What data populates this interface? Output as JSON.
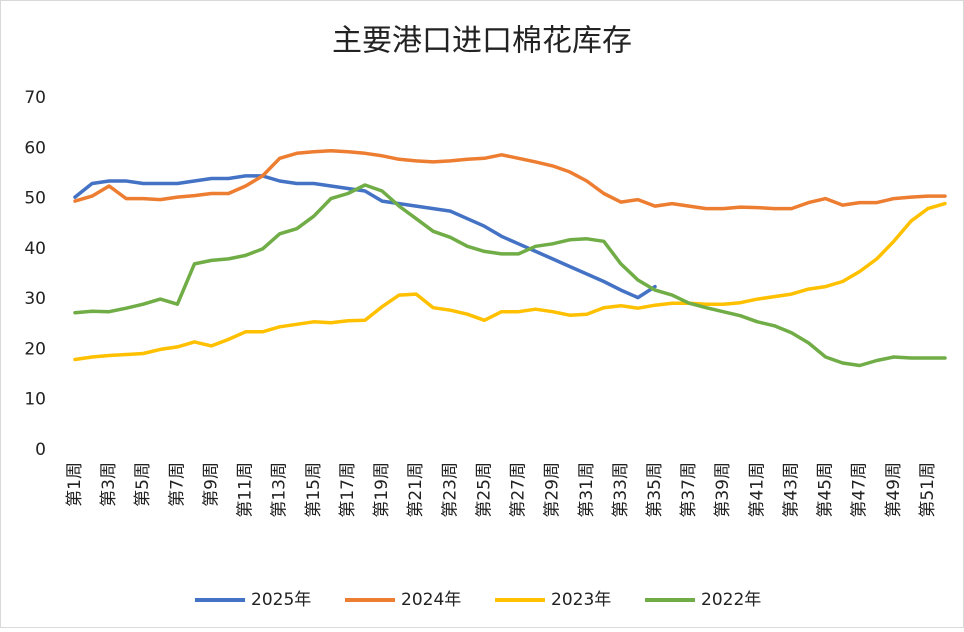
{
  "chart_data": {
    "type": "line",
    "title": "主要港口进口棉花库存",
    "categories": [
      "第1周",
      null,
      "第3周",
      null,
      "第5周",
      null,
      "第7周",
      null,
      "第9周",
      null,
      "第11周",
      null,
      "第13周",
      null,
      "第15周",
      null,
      "第17周",
      null,
      "第19周",
      null,
      "第21周",
      null,
      "第23周",
      null,
      "第25周",
      null,
      "第27周",
      null,
      "第29周",
      null,
      "第31周",
      null,
      "第33周",
      null,
      "第35周",
      null,
      "第37周",
      null,
      "第39周",
      null,
      "第41周",
      null,
      "第43周",
      null,
      "第45周",
      null,
      "第47周",
      null,
      "第49周",
      null,
      "第51周",
      null
    ],
    "series": [
      {
        "name": "2025年",
        "color": "#4472c4",
        "values": [
          50.3,
          53,
          53.5,
          53.5,
          53,
          53,
          53,
          53.5,
          54,
          54,
          54.5,
          54.5,
          53.5,
          53,
          53,
          52.5,
          52,
          51.5,
          49.5,
          49,
          48.5,
          48,
          47.5,
          46,
          44.5,
          42.5,
          41,
          39.5,
          38,
          36.5,
          35,
          33.5,
          31.8,
          30.3,
          32.5,
          null,
          null,
          null,
          null,
          null,
          null,
          null,
          null,
          null,
          null,
          null,
          null,
          null,
          null,
          null,
          null,
          null
        ]
      },
      {
        "name": "2024年",
        "color": "#ed7d31",
        "values": [
          49.5,
          50.5,
          52.5,
          50,
          50,
          49.8,
          50.3,
          50.6,
          51,
          51,
          52.5,
          54.5,
          58,
          59,
          59.3,
          59.5,
          59.3,
          59,
          58.5,
          57.8,
          57.5,
          57.3,
          57.5,
          57.8,
          58,
          58.7,
          58,
          57.3,
          56.5,
          55.3,
          53.5,
          51,
          49.3,
          49.8,
          48.5,
          49,
          48.5,
          48,
          48,
          48.3,
          48.2,
          48,
          48,
          49.2,
          50,
          48.7,
          49.2,
          49.2,
          50,
          50.3,
          50.5,
          50.5
        ]
      },
      {
        "name": "2023年",
        "color": "#ffc000",
        "values": [
          18,
          18.5,
          18.8,
          19,
          19.2,
          20,
          20.5,
          21.5,
          20.7,
          22,
          23.5,
          23.5,
          24.5,
          25,
          25.5,
          25.3,
          25.7,
          25.8,
          28.5,
          30.8,
          31,
          28.3,
          27.8,
          27,
          25.8,
          27.5,
          27.5,
          28,
          27.5,
          26.8,
          27,
          28.3,
          28.7,
          28.2,
          28.8,
          29.2,
          29.2,
          29,
          29,
          29.3,
          30,
          30.5,
          31,
          32,
          32.5,
          33.5,
          35.5,
          38,
          41.5,
          45.5,
          48,
          49
        ]
      },
      {
        "name": "2022年",
        "color": "#70ad47",
        "values": [
          27.3,
          27.6,
          27.5,
          28.2,
          29,
          30,
          29,
          37,
          37.7,
          38,
          38.7,
          40,
          43,
          44,
          46.5,
          50,
          51,
          52.7,
          51.5,
          48.5,
          46,
          43.5,
          42.3,
          40.5,
          39.5,
          39,
          39,
          40.5,
          41,
          41.8,
          42,
          41.5,
          37,
          33.8,
          31.8,
          30.8,
          29.2,
          28.3,
          27.5,
          26.7,
          25.5,
          24.7,
          23.3,
          21.3,
          18.5,
          17.3,
          16.8,
          17.8,
          18.5,
          18.3,
          18.3,
          18.3
        ]
      }
    ],
    "ylim": [
      0,
      70
    ],
    "yticks": [
      0,
      10,
      20,
      30,
      40,
      50,
      60,
      70
    ],
    "grid": false,
    "legend": "bottom"
  }
}
